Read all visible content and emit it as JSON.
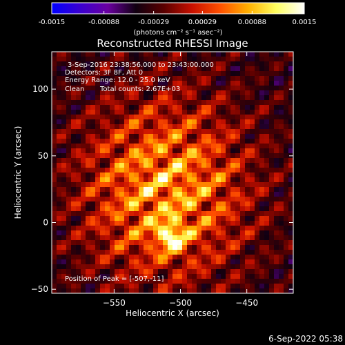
{
  "colorbar": {
    "ticks": [
      "-0.0015",
      "-0.00088",
      "-0.00029",
      "0.00029",
      "0.00088",
      "0.0015"
    ],
    "tick_values": [
      -0.0015,
      -0.00088,
      -0.00029,
      0.00029,
      0.00088,
      0.0015
    ],
    "range": [
      -0.0015,
      0.0015
    ],
    "colors": [
      "#0000ff",
      "#3a00d0",
      "#6a00a0",
      "#100010",
      "#5a0000",
      "#c81000",
      "#ff5000",
      "#ffb000",
      "#ffff60",
      "#ffffff"
    ],
    "unit_label": "(photons cm⁻² s⁻¹ asec⁻²)"
  },
  "chart_data": {
    "type": "heatmap",
    "title": "Reconstructed RHESSI Image",
    "xlabel": "Heliocentric X (arcsec)",
    "ylabel": "Heliocentric Y (arcsec)",
    "xlim": [
      -597,
      -415
    ],
    "ylim": [
      -53,
      128
    ],
    "xticks": [
      -550,
      -500,
      -450
    ],
    "xtick_labels": [
      "−550",
      "−500",
      "−450"
    ],
    "yticks": [
      -50,
      0,
      50,
      100
    ],
    "ytick_labels": [
      "−50",
      "0",
      "50",
      "100"
    ],
    "annotations": [
      "3-Sep-2016 23:38:56.000 to 23:43:00.000",
      "Detectors: 3F 8F, Att 0",
      "Energy Range: 12.0 - 25.0 keV",
      "Clean",
      "Total counts: 2.67E+03"
    ],
    "peak_label": "Position of Peak = [-507,-11]",
    "peak": [
      -507,
      -11
    ],
    "grid": false,
    "colors": {
      "background": "#000000",
      "positive_high": "#ffffff",
      "positive_mid": "#ff5000",
      "negative": "#3a00d0"
    }
  },
  "footer": {
    "timestamp": "6-Sep-2022 05:38"
  }
}
